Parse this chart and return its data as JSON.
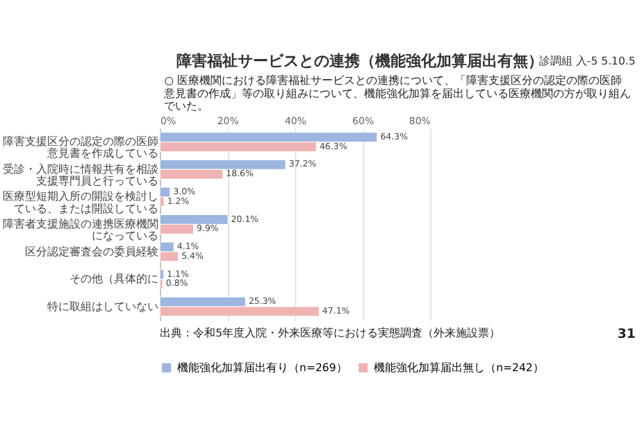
{
  "chart_data": {
    "type": "bar",
    "orientation": "horizontal",
    "title": "障害福祉サービスとの連携（機能強化加算届出有無）",
    "subtitle": "○ 医療機関における障害福祉サービスとの連携について、「障害支援区分の認定の際の医師意見書の作成」等の取り組みについて、機能強化加算を届出している医療機関の方が取り組んでいた。",
    "categories": [
      "障害支援区分の認定の際の医師意見書を作成している",
      "受診・入院時に情報共有を相談支援専門員と行っている",
      "医療型短期入所の開設を検討している、または開設している",
      "障害者支援施設の連携医療機関になっている",
      "区分認定審査会の委員経験",
      "その他（具体的に",
      "特に取組はしていない"
    ],
    "series": [
      {
        "name": "機能強化加算届出有り（n=269）",
        "color": "#9db5e0",
        "values": [
          64.3,
          37.2,
          3.0,
          20.1,
          4.1,
          1.1,
          25.3
        ],
        "value_labels": [
          "64.3%",
          "37.2%",
          "3.0%",
          "20.1%",
          "4.1%",
          "1.1%",
          "25.3%"
        ]
      },
      {
        "name": "機能強化加算届出無し（n=242）",
        "color": "#f0b3b3",
        "values": [
          46.3,
          18.6,
          1.2,
          9.9,
          5.4,
          0.8,
          47.1
        ],
        "value_labels": [
          "46.3%",
          "18.6%",
          "1.2%",
          "9.9%",
          "5.4%",
          "0.8%",
          "47.1%"
        ]
      }
    ],
    "xlim": [
      0,
      80
    ],
    "xticks": [
      {
        "value": 0,
        "label": "0%"
      },
      {
        "value": 20,
        "label": "20%"
      },
      {
        "value": 40,
        "label": "40%"
      },
      {
        "value": 60,
        "label": "60%"
      },
      {
        "value": 80,
        "label": "80%"
      }
    ],
    "grid": "x",
    "legend": "bottom",
    "annotations": [
      "診調組 入-5 5.10.5",
      "出典：令和5年度入院・外来医療等における実態調査（外来施設票）",
      "31"
    ]
  }
}
